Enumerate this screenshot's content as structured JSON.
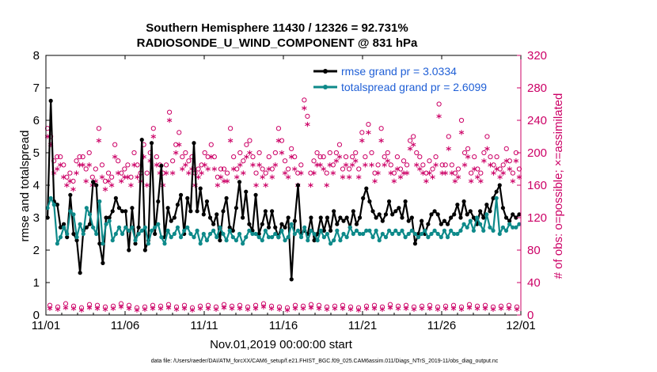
{
  "chart_data": {
    "type": "line",
    "title_line1": "Southern Hemisphere 11430 / 12326 = 92.731%",
    "title_line2": "RADIOSONDE_U_WIND_COMPONENT @ 831 hPa",
    "xlabel": "Nov.01,2019 00:00:00 start",
    "ylabel": "rmse and totalspread",
    "y2label": "# of obs: o=possible; ×=assimilated",
    "footer": "data file: /Users/raeder/DAI/ATM_forcXX/CAM6_setup/f.e21.FHIST_BGC.f09_025.CAM6assim.011/Diags_NTrS_2019-11/obs_diag_output.nc",
    "xlim": [
      0,
      30
    ],
    "ylim": [
      0,
      8
    ],
    "y2lim": [
      0,
      320
    ],
    "xticks": [
      0,
      5,
      10,
      15,
      20,
      25,
      30
    ],
    "xtick_labels": [
      "11/01",
      "11/06",
      "11/11",
      "11/16",
      "11/21",
      "11/26",
      "12/01"
    ],
    "yticks": [
      0,
      1,
      2,
      3,
      4,
      5,
      6,
      7,
      8
    ],
    "ytick_labels": [
      "0",
      "1",
      "2",
      "3",
      "4",
      "5",
      "6",
      "7",
      "8"
    ],
    "y2ticks": [
      0,
      40,
      80,
      120,
      160,
      200,
      240,
      280,
      320
    ],
    "y2tick_labels": [
      "0",
      "40",
      "80",
      "120",
      "160",
      "200",
      "240",
      "280",
      "320"
    ],
    "series": [
      {
        "name": "rmse grand pr = 3.0334",
        "color": "#000000",
        "axis": "left",
        "values": [
          3.0,
          6.6,
          3.5,
          3.4,
          2.7,
          2.8,
          2.4,
          3.7,
          2.5,
          2.3,
          1.3,
          2.6,
          2.7,
          2.8,
          4.1,
          4.0,
          2.2,
          1.6,
          3.0,
          3.0,
          3.2,
          3.6,
          3.3,
          3.2,
          3.2,
          2.0,
          3.3,
          2.2,
          2.7,
          5.4,
          2.0,
          2.3,
          5.3,
          2.5,
          3.5,
          4.6,
          2.4,
          3.3,
          2.9,
          3.0,
          3.4,
          3.7,
          2.5,
          3.6,
          3.2,
          5.3,
          3.2,
          3.9,
          3.1,
          3.5,
          3.0,
          2.8,
          3.1,
          2.3,
          3.2,
          3.6,
          2.7,
          2.6,
          3.3,
          4.1,
          3.0,
          3.8,
          2.8,
          2.6,
          3.7,
          2.5,
          2.8,
          3.2,
          2.7,
          3.2,
          2.7,
          2.4,
          2.8,
          2.7,
          3.0,
          1.1,
          2.9,
          4.0,
          2.5,
          2.6,
          2.5,
          3.0,
          2.3,
          2.5,
          3.0,
          2.6,
          3.0,
          2.6,
          3.2,
          2.8,
          3.0,
          2.9,
          3.0,
          2.7,
          3.2,
          2.8,
          3.0,
          3.6,
          3.9,
          3.5,
          3.2,
          3.0,
          3.1,
          2.9,
          3.1,
          3.5,
          3.1,
          3.2,
          3.3,
          3.0,
          3.5,
          2.9,
          3.0,
          2.2,
          2.5,
          2.9,
          2.5,
          2.8,
          3.1,
          3.2,
          3.1,
          2.8,
          2.9,
          2.8,
          3.0,
          3.1,
          3.4,
          3.0,
          3.5,
          3.1,
          3.2,
          3.0,
          2.8,
          3.2,
          3.0,
          3.4,
          3.2,
          3.6,
          3.8,
          4.0,
          3.3,
          3.0,
          2.9,
          3.1,
          3.0,
          3.1
        ]
      },
      {
        "name": "totalspread grand pr = 2.6099",
        "color": "#0e8a8a",
        "axis": "left",
        "values": [
          3.3,
          3.6,
          3.4,
          2.2,
          2.4,
          2.7,
          2.5,
          3.2,
          3.1,
          2.4,
          2.8,
          2.5,
          3.3,
          3.1,
          2.7,
          2.5,
          3.5,
          2.2,
          2.8,
          2.9,
          2.3,
          2.5,
          2.7,
          2.5,
          2.7,
          2.6,
          2.7,
          2.3,
          2.5,
          2.6,
          2.7,
          2.2,
          2.6,
          2.7,
          2.8,
          2.4,
          2.2,
          2.6,
          2.4,
          2.5,
          2.7,
          2.4,
          2.6,
          2.7,
          2.5,
          2.4,
          2.6,
          2.2,
          2.5,
          2.3,
          2.5,
          2.6,
          2.4,
          2.7,
          2.5,
          2.3,
          2.6,
          2.4,
          2.3,
          2.5,
          2.2,
          2.4,
          2.6,
          2.5,
          2.5,
          2.4,
          2.3,
          2.6,
          2.4,
          2.4,
          2.5,
          2.4,
          2.6,
          2.3,
          2.4,
          2.8,
          2.5,
          2.6,
          2.4,
          2.7,
          2.3,
          2.6,
          2.5,
          2.3,
          2.6,
          2.4,
          2.5,
          2.2,
          2.3,
          2.6,
          2.3,
          2.5,
          2.4,
          2.7,
          2.5,
          2.6,
          2.5,
          2.5,
          2.6,
          2.6,
          2.4,
          2.6,
          2.3,
          2.5,
          2.4,
          2.6,
          2.5,
          2.6,
          2.5,
          2.6,
          2.4,
          2.5,
          2.6,
          2.5,
          2.4,
          2.5,
          2.6,
          2.4,
          2.5,
          2.6,
          2.5,
          2.4,
          2.6,
          2.4,
          2.6,
          2.5,
          2.5,
          2.6,
          2.8,
          2.7,
          2.9,
          2.6,
          3.0,
          2.8,
          2.6,
          3.1,
          2.7,
          2.6,
          3.6,
          2.5,
          2.7,
          2.6,
          2.8,
          2.7,
          2.7,
          2.8
        ]
      }
    ],
    "obs_possible": {
      "name": "possible",
      "color": "#cc0066",
      "axis": "right",
      "values": [
        230,
        220,
        190,
        195,
        195,
        185,
        170,
        175,
        165,
        190,
        195,
        195,
        180,
        200,
        170,
        180,
        230,
        185,
        165,
        175,
        170,
        210,
        190,
        175,
        180,
        185,
        170,
        200,
        185,
        175,
        210,
        175,
        200,
        230,
        195,
        185,
        175,
        185,
        250,
        190,
        210,
        225,
        195,
        200,
        190,
        195,
        175,
        180,
        185,
        200,
        195,
        210,
        195,
        170,
        180,
        180,
        175,
        230,
        195,
        180,
        200,
        190,
        210,
        215,
        195,
        175,
        200,
        180,
        175,
        195,
        180,
        200,
        230,
        215,
        190,
        180,
        205,
        195,
        175,
        185,
        265,
        245,
        175,
        190,
        200,
        195,
        195,
        175,
        200,
        185,
        200,
        210,
        180,
        195,
        180,
        195,
        200,
        180,
        225,
        195,
        235,
        200,
        175,
        185,
        230,
        195,
        200,
        185,
        175,
        195,
        180,
        190,
        185,
        215,
        220,
        200,
        195,
        185,
        175,
        190,
        180,
        195,
        260,
        185,
        185,
        220,
        185,
        175,
        180,
        240,
        200,
        205,
        175,
        195,
        180,
        175,
        200,
        220,
        195,
        185,
        195,
        180,
        185,
        205,
        190,
        175,
        200,
        180
      ]
    },
    "obs_assimilated": {
      "name": "assimilated",
      "color": "#cc0066",
      "axis": "right",
      "values": [
        220,
        210,
        175,
        180,
        185,
        170,
        160,
        165,
        155,
        175,
        185,
        185,
        165,
        185,
        160,
        165,
        215,
        170,
        155,
        165,
        160,
        195,
        175,
        165,
        170,
        170,
        160,
        185,
        170,
        165,
        195,
        160,
        190,
        220,
        185,
        175,
        160,
        175,
        240,
        175,
        200,
        210,
        180,
        185,
        175,
        180,
        160,
        170,
        175,
        185,
        180,
        195,
        180,
        160,
        170,
        165,
        165,
        215,
        180,
        170,
        185,
        175,
        195,
        200,
        185,
        160,
        185,
        170,
        160,
        180,
        170,
        185,
        215,
        200,
        175,
        170,
        195,
        180,
        160,
        175,
        255,
        235,
        160,
        175,
        185,
        185,
        180,
        160,
        185,
        175,
        190,
        195,
        170,
        185,
        170,
        185,
        190,
        170,
        215,
        185,
        225,
        185,
        165,
        175,
        215,
        185,
        190,
        175,
        165,
        180,
        170,
        175,
        175,
        205,
        210,
        185,
        180,
        175,
        165,
        175,
        170,
        185,
        245,
        175,
        175,
        205,
        175,
        165,
        170,
        225,
        185,
        195,
        165,
        180,
        170,
        165,
        190,
        205,
        185,
        175,
        180,
        170,
        175,
        190,
        180,
        165,
        190,
        170
      ]
    },
    "obs_bottom_possible": [
      12,
      10,
      14,
      11,
      9,
      13,
      12,
      10,
      11,
      14,
      12,
      9,
      10,
      12,
      11,
      13,
      10,
      12,
      9,
      11,
      12,
      10,
      13,
      11,
      12,
      10,
      12,
      14,
      11,
      10,
      9,
      12,
      11,
      13,
      12,
      10,
      11,
      12,
      10,
      9,
      11,
      12,
      10,
      13,
      11,
      12,
      10,
      11,
      12,
      10,
      11,
      12,
      10,
      13,
      11,
      12,
      10,
      11,
      12,
      10
    ],
    "obs_bottom_assimilated": [
      8,
      7,
      9,
      8,
      6,
      9,
      8,
      7,
      8,
      10,
      8,
      6,
      7,
      8,
      8,
      9,
      7,
      8,
      6,
      8,
      8,
      7,
      9,
      8,
      8,
      7,
      8,
      10,
      8,
      7,
      6,
      8,
      8,
      9,
      8,
      7,
      8,
      8,
      7,
      6,
      8,
      8,
      7,
      9,
      8,
      8,
      7,
      8,
      8,
      7,
      8,
      8,
      7,
      9,
      8,
      8,
      7,
      8,
      8,
      7
    ]
  }
}
